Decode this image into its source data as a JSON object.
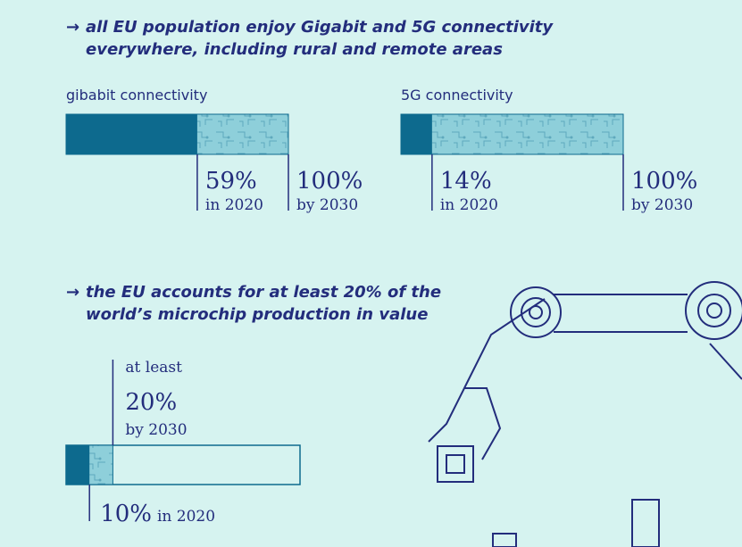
{
  "sections": [
    {
      "heading": [
        "all EU population enjoy Gigabit and 5G connectivity",
        "everywhere, including rural and remote areas"
      ],
      "gauges": [
        {
          "label": "gibabit connectivity",
          "current": {
            "value": 59,
            "label": "59%",
            "period": "in 2020"
          },
          "target": {
            "value": 100,
            "label": "100%",
            "period": "by 2030"
          }
        },
        {
          "label": "5G connectivity",
          "current": {
            "value": 14,
            "label": "14%",
            "period": "in 2020"
          },
          "target": {
            "value": 100,
            "label": "100%",
            "period": "by 2030"
          }
        }
      ]
    },
    {
      "heading": [
        "the EU accounts for at least 20% of the",
        "world’s microchip production in value"
      ],
      "gauges": [
        {
          "prefix": "at least",
          "current": {
            "value": 10,
            "label": "10%",
            "period": "in 2020"
          },
          "target": {
            "value": 20,
            "label": "20%",
            "period": "by 2030"
          }
        }
      ]
    }
  ]
}
